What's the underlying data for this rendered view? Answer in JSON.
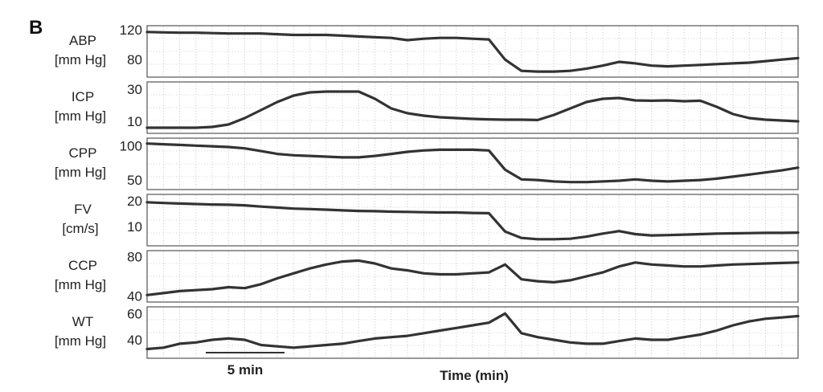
{
  "panel_letter": "B",
  "chart_data": {
    "type": "line",
    "xlabel": "Time (min)",
    "scalebar_label": "5 min",
    "scalebar_minutes": 5,
    "x": [
      0,
      1,
      2,
      3,
      4,
      5,
      6,
      7,
      8,
      9,
      10,
      11,
      12,
      13,
      14,
      15,
      16,
      17,
      18,
      19,
      20,
      21,
      22,
      23,
      24,
      25,
      26,
      27,
      28,
      29,
      30,
      31,
      32,
      33,
      34,
      35,
      36,
      37,
      38,
      39,
      40
    ],
    "xlim": [
      0,
      40
    ],
    "grid": true,
    "panels": [
      {
        "label_line1": "ABP",
        "label_line2": "[mm Hg]",
        "ticks": [
          {
            "value": 120,
            "label": "120"
          },
          {
            "value": 80,
            "label": "80"
          }
        ],
        "ylim": [
          62,
          120
        ],
        "values": [
          117,
          116.5,
          116,
          116,
          115.5,
          115,
          115,
          115,
          114,
          113,
          113,
          113,
          112,
          111,
          110,
          109,
          106,
          108,
          109,
          109,
          108,
          107,
          80,
          65,
          64,
          64,
          65,
          68,
          72,
          77,
          75,
          72,
          71,
          72,
          73,
          74,
          75,
          76,
          78,
          80,
          82
        ]
      },
      {
        "label_line1": "ICP",
        "label_line2": "[mm Hg]",
        "ticks": [
          {
            "value": 30,
            "label": "30"
          },
          {
            "value": 10,
            "label": "10"
          }
        ],
        "ylim": [
          5,
          32
        ],
        "values": [
          6,
          6,
          6,
          6,
          6.5,
          8,
          12,
          17,
          22,
          26,
          28,
          28.5,
          28.5,
          28.5,
          24,
          18,
          15,
          13.5,
          12.5,
          12,
          11.5,
          11.2,
          11,
          11,
          10.8,
          14,
          18,
          22,
          24,
          24.5,
          23,
          22.8,
          23,
          22.5,
          22.8,
          19,
          14.5,
          12,
          11,
          10.5,
          10
        ]
      },
      {
        "label_line1": "CPP",
        "label_line2": "[mm Hg]",
        "ticks": [
          {
            "value": 100,
            "label": "100"
          },
          {
            "value": 50,
            "label": "50"
          }
        ],
        "ylim": [
          42,
          105
        ],
        "values": [
          103,
          102,
          101,
          100,
          99,
          98,
          96,
          92,
          88,
          86,
          85,
          84,
          83,
          83,
          85,
          88,
          91,
          93,
          94,
          94,
          94,
          93,
          65,
          51,
          50,
          48,
          47,
          47,
          48,
          49,
          51,
          49,
          48,
          49,
          50,
          52,
          55,
          58,
          61,
          64,
          68
        ]
      },
      {
        "label_line1": "FV",
        "label_line2": "[cm/s]",
        "ticks": [
          {
            "value": 20,
            "label": "20"
          },
          {
            "value": 10,
            "label": "10"
          }
        ],
        "ylim": [
          4,
          21
        ],
        "values": [
          19.5,
          19.2,
          19,
          18.8,
          18.6,
          18.5,
          18.3,
          17.8,
          17.4,
          17,
          16.8,
          16.6,
          16.3,
          16.1,
          16,
          15.8,
          15.7,
          15.6,
          15.5,
          15.5,
          15.3,
          15.2,
          8,
          5.5,
          5,
          5,
          5.2,
          6,
          7.2,
          8.2,
          7,
          6.5,
          6.6,
          6.8,
          7,
          7.2,
          7.3,
          7.4,
          7.5,
          7.5,
          7.6
        ]
      },
      {
        "label_line1": "CCP",
        "label_line2": "[mm Hg]",
        "ticks": [
          {
            "value": 80,
            "label": "80"
          },
          {
            "value": 40,
            "label": "40"
          }
        ],
        "ylim": [
          38,
          82
        ],
        "values": [
          41,
          43,
          45,
          46,
          47,
          49,
          48,
          52,
          58,
          63,
          68,
          72,
          75,
          76,
          73,
          68,
          66,
          63,
          62,
          62,
          63,
          64,
          72,
          57,
          55,
          54,
          56,
          60,
          64,
          70,
          74,
          72,
          71,
          70,
          70,
          71,
          72,
          72.5,
          73,
          73.5,
          74
        ]
      },
      {
        "label_line1": "WT",
        "label_line2": "[mm Hg]",
        "ticks": [
          {
            "value": 60,
            "label": "60"
          },
          {
            "value": 40,
            "label": "40"
          }
        ],
        "ylim": [
          29,
          62
        ],
        "values": [
          33,
          34,
          37,
          38,
          40,
          41,
          40,
          36,
          35,
          34,
          35,
          36,
          37,
          39,
          41,
          42,
          43,
          45,
          47,
          49,
          51,
          53,
          60,
          45,
          42,
          40,
          38,
          37,
          37,
          39,
          41,
          40,
          40,
          42,
          44,
          47,
          51,
          54,
          56,
          57,
          58
        ]
      }
    ]
  }
}
